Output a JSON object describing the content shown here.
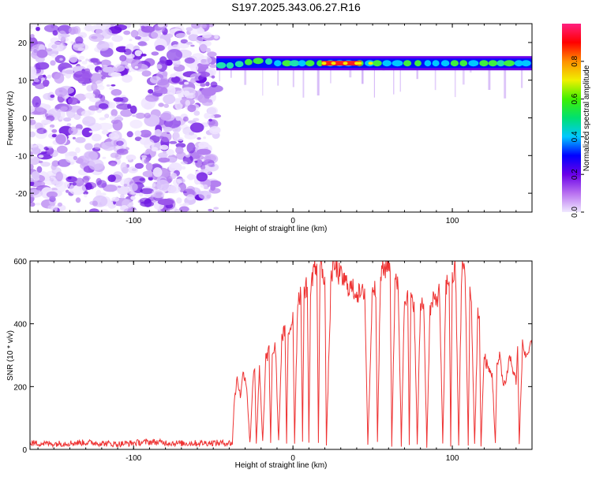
{
  "title": "S197.2025.343.06.27.R16",
  "chart_data": [
    {
      "type": "heatmap",
      "name": "spectrogram",
      "xlabel": "Height of straight line (km)",
      "ylabel": "Frequency (Hz)",
      "xlim": [
        -165,
        150
      ],
      "ylim": [
        -25,
        25
      ],
      "xticks": [
        -100,
        0,
        100
      ],
      "yticks": [
        -20,
        -10,
        0,
        10,
        20
      ],
      "tone_start_km": -48,
      "tone_frequency_hz": 14.5,
      "noise_region_km": [
        -165,
        -48
      ],
      "colorbar": {
        "label": "Normalized spectral amplitude",
        "range": [
          0,
          1
        ],
        "ticks": [
          "0.0",
          "0.2",
          "0.4",
          "0.6",
          "0.8"
        ],
        "colors": [
          "#f0e8ff",
          "#b870f0",
          "#6a00e8",
          "#0000ff",
          "#00c8ff",
          "#00e070",
          "#40f000",
          "#f0f000",
          "#ff9000",
          "#ff0000",
          "#ff2080"
        ]
      }
    },
    {
      "type": "line",
      "name": "snr",
      "xlabel": "Height of straight line (km)",
      "ylabel": "SNR (10 * v/v)",
      "xlim": [
        -165,
        150
      ],
      "ylim": [
        0,
        600
      ],
      "xticks": [
        -100,
        0,
        100
      ],
      "yticks": [
        0,
        200,
        400,
        600
      ],
      "color": "#ee3333",
      "series": [
        {
          "name": "SNR",
          "x": [
            -165,
            -150,
            -130,
            -110,
            -90,
            -70,
            -50,
            -38,
            -37,
            -35,
            -33,
            -31,
            -29,
            -27,
            -25,
            -24,
            -23,
            -21,
            -19,
            -17,
            -15,
            -14,
            -13,
            -11,
            -9,
            -7,
            -5,
            -4,
            -3,
            -1,
            0,
            1,
            3,
            5,
            6,
            7,
            9,
            10,
            11,
            13,
            15,
            16,
            17,
            19,
            20,
            21,
            24,
            26,
            27,
            28,
            30,
            35,
            40,
            43,
            45,
            47,
            50,
            52,
            53,
            55,
            57,
            60,
            61,
            62,
            64,
            66,
            68,
            70,
            72,
            73,
            74,
            76,
            78,
            80,
            82,
            84,
            86,
            88,
            90,
            92,
            94,
            96,
            98,
            99,
            100,
            102,
            104,
            106,
            108,
            110,
            111,
            112,
            114,
            116,
            117,
            118,
            120,
            121,
            123,
            125,
            127,
            128,
            130,
            132,
            134,
            136,
            138,
            140,
            141,
            142,
            144,
            146,
            148,
            150
          ],
          "y": [
            20,
            18,
            22,
            17,
            24,
            19,
            21,
            20,
            140,
            230,
            170,
            250,
            200,
            15,
            230,
            270,
            12,
            260,
            20,
            290,
            310,
            15,
            300,
            330,
            20,
            350,
            380,
            14,
            370,
            400,
            430,
            20,
            480,
            500,
            15,
            510,
            520,
            18,
            490,
            590,
            560,
            20,
            580,
            570,
            545,
            16,
            560,
            580,
            575,
            565,
            550,
            520,
            500,
            490,
            510,
            15,
            530,
            520,
            14,
            560,
            570,
            600,
            560,
            16,
            520,
            540,
            15,
            500,
            480,
            12,
            470,
            470,
            16,
            460,
            470,
            14,
            440,
            470,
            480,
            500,
            12,
            520,
            540,
            15,
            550,
            570,
            16,
            590,
            560,
            14,
            500,
            460,
            12,
            430,
            400,
            15,
            300,
            280,
            250,
            240,
            20,
            260,
            300,
            200,
            230,
            300,
            250,
            220,
            320,
            15,
            330,
            300,
            310,
            330
          ]
        }
      ]
    }
  ]
}
